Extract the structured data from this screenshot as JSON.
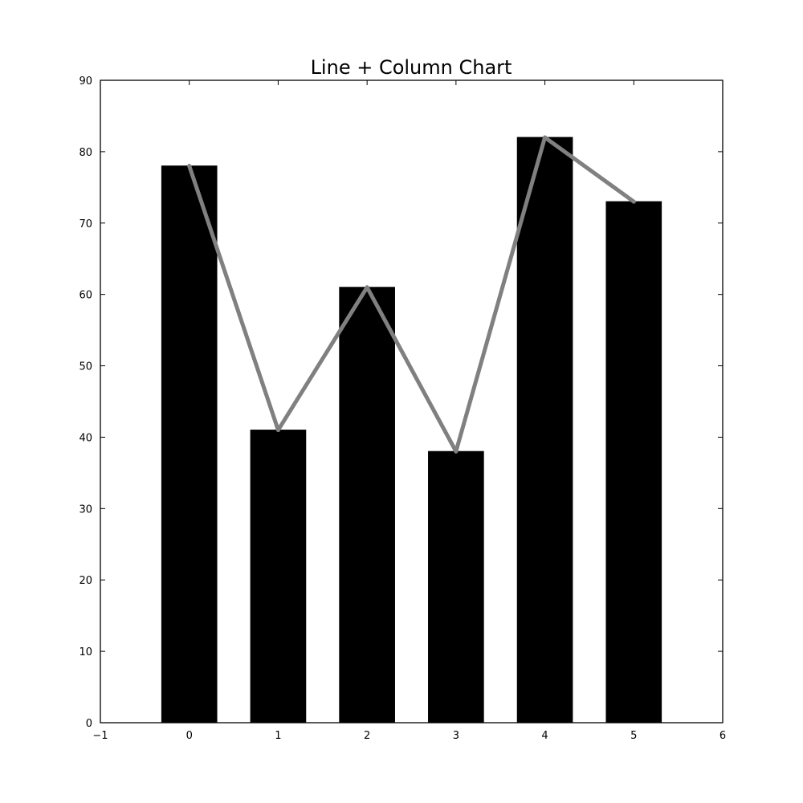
{
  "chart_data": {
    "type": "bar",
    "title": "Line + Column Chart",
    "xlabel": "",
    "ylabel": "",
    "x": [
      0,
      1,
      2,
      3,
      4,
      5
    ],
    "series": [
      {
        "kind": "bar",
        "values": [
          78,
          41,
          61,
          38,
          82,
          73
        ],
        "color": "#000000",
        "bar_width": 0.62
      },
      {
        "kind": "line",
        "values": [
          78,
          41,
          61,
          38,
          82,
          73
        ],
        "color": "#808080"
      }
    ],
    "xlim": [
      -1,
      6
    ],
    "ylim": [
      0,
      90
    ],
    "xticks": [
      "−1",
      "0",
      "1",
      "2",
      "3",
      "4",
      "5",
      "6"
    ],
    "yticks": [
      "0",
      "10",
      "20",
      "30",
      "40",
      "50",
      "60",
      "70",
      "80",
      "90"
    ],
    "grid": false,
    "legend": "none"
  }
}
